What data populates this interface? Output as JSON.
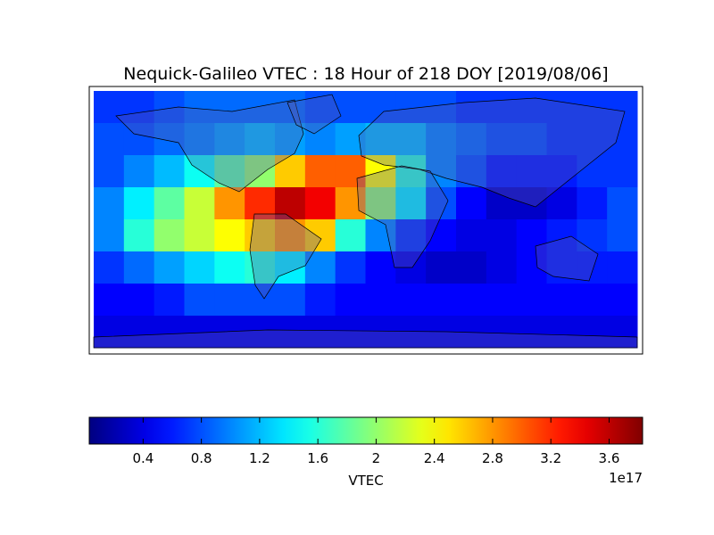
{
  "chart_data": {
    "type": "heatmap",
    "title": "Nequick-Galileo VTEC : 18 Hour of 218 DOY [2019/08/06]",
    "colorbar_label": "VTEC",
    "colorbar_offset": "1e17",
    "colormap": "jet",
    "clim": [
      0.03,
      3.83
    ],
    "cticks": [
      0.4,
      0.8,
      1.2,
      1.6,
      2.0,
      2.4,
      2.8,
      3.2,
      3.6
    ],
    "values": [
      [
        0.7,
        0.7,
        0.8,
        0.9,
        0.9,
        0.9,
        0.9,
        0.8,
        0.8,
        0.8,
        0.8,
        0.8,
        0.7,
        0.7,
        0.7,
        0.7,
        0.7,
        0.7
      ],
      [
        0.8,
        0.8,
        0.9,
        1.0,
        1.1,
        1.2,
        1.1,
        1.0,
        1.1,
        1.2,
        1.2,
        1.0,
        0.9,
        0.8,
        0.8,
        0.7,
        0.7,
        0.7
      ],
      [
        0.8,
        1.0,
        1.2,
        1.5,
        1.8,
        2.0,
        2.6,
        3.0,
        3.0,
        2.4,
        1.6,
        1.0,
        0.8,
        0.6,
        0.6,
        0.6,
        0.7,
        0.7
      ],
      [
        1.0,
        1.4,
        1.8,
        2.2,
        2.8,
        3.2,
        3.6,
        3.4,
        2.8,
        2.0,
        1.4,
        0.8,
        0.5,
        0.3,
        0.3,
        0.4,
        0.6,
        0.8
      ],
      [
        1.0,
        1.6,
        2.0,
        2.2,
        2.4,
        2.6,
        2.8,
        2.6,
        1.6,
        1.0,
        0.7,
        0.5,
        0.4,
        0.4,
        0.5,
        0.6,
        0.7,
        0.8
      ],
      [
        0.7,
        0.9,
        1.1,
        1.3,
        1.5,
        1.6,
        1.4,
        1.0,
        0.7,
        0.5,
        0.4,
        0.3,
        0.3,
        0.4,
        0.5,
        0.6,
        0.6,
        0.6
      ],
      [
        0.5,
        0.5,
        0.6,
        0.8,
        0.8,
        0.8,
        0.8,
        0.6,
        0.5,
        0.5,
        0.5,
        0.5,
        0.5,
        0.5,
        0.5,
        0.5,
        0.5,
        0.5
      ],
      [
        0.4,
        0.4,
        0.4,
        0.4,
        0.4,
        0.4,
        0.4,
        0.4,
        0.4,
        0.4,
        0.4,
        0.4,
        0.4,
        0.4,
        0.4,
        0.4,
        0.4,
        0.4
      ]
    ]
  }
}
